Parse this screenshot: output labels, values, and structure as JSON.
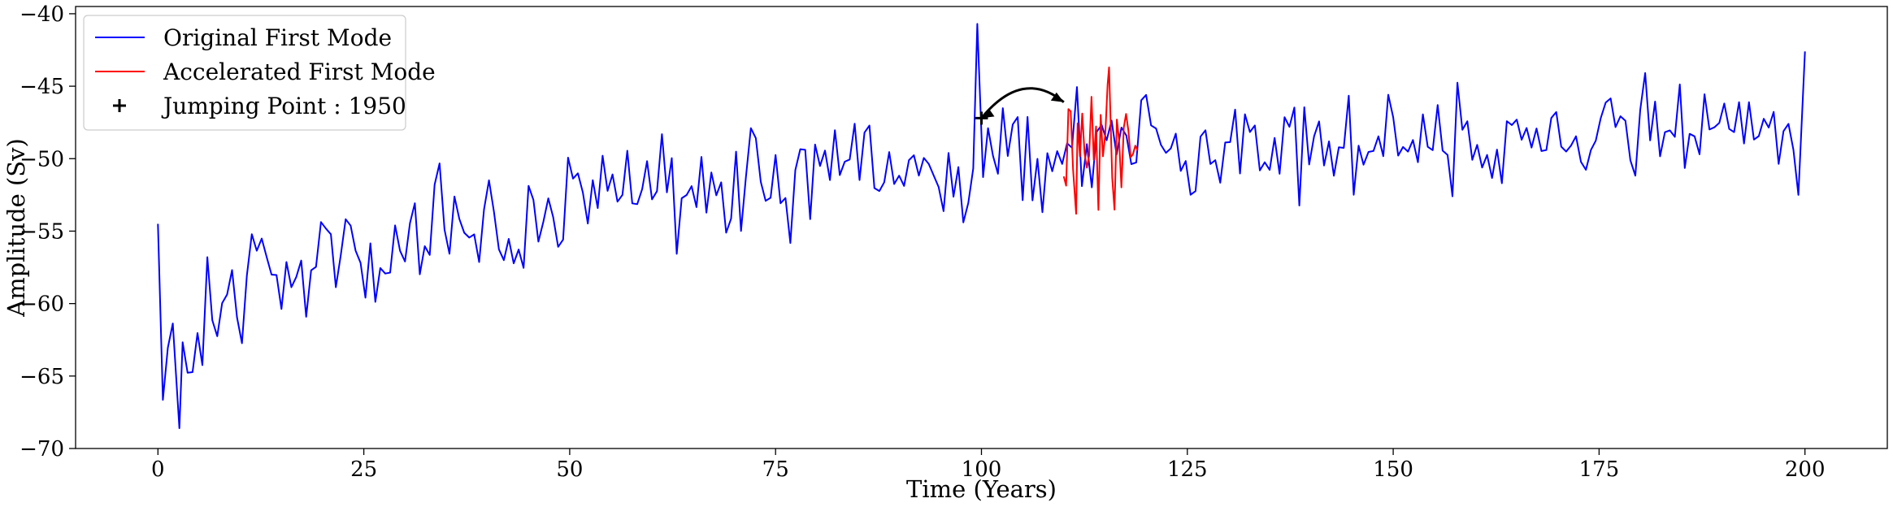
{
  "chart_data": {
    "type": "line",
    "title": "",
    "xlabel": "Time (Years)",
    "ylabel": "Amplitude (Sv)",
    "xlim": [
      -10,
      210
    ],
    "ylim": [
      -70,
      -39.5
    ],
    "x_ticks": [
      0,
      25,
      50,
      75,
      100,
      125,
      150,
      175,
      200
    ],
    "y_ticks": [
      -70,
      -65,
      -60,
      -55,
      -50,
      -45,
      -40
    ],
    "x_tick_labels": [
      "0",
      "25",
      "50",
      "75",
      "100",
      "125",
      "150",
      "175",
      "200"
    ],
    "y_tick_labels": [
      "−70",
      "−65",
      "−60",
      "−55",
      "−50",
      "−45",
      "−40"
    ],
    "grid": false,
    "legend_position": "top-left",
    "series": [
      {
        "name": "Original First Mode",
        "color": "#0000ff",
        "note_sampling": "approximate envelope reading, one point per ~0.6 year",
        "x_start": 0,
        "x_end": 200,
        "trend": [
          [
            0,
            -65.5
          ],
          [
            5,
            -61.5
          ],
          [
            10,
            -59.5
          ],
          [
            20,
            -57
          ],
          [
            30,
            -55.5
          ],
          [
            50,
            -53.5
          ],
          [
            70,
            -52
          ],
          [
            90,
            -50.5
          ],
          [
            110,
            -49.5
          ],
          [
            125,
            -49
          ],
          [
            150,
            -48.5
          ],
          [
            175,
            -48
          ],
          [
            200,
            -47.5
          ]
        ],
        "amplitude_envelope": [
          [
            0,
            4.5
          ],
          [
            20,
            4.5
          ],
          [
            50,
            4.2
          ],
          [
            100,
            4.0
          ],
          [
            150,
            3.8
          ],
          [
            200,
            3.8
          ]
        ],
        "extremes": [
          {
            "x": 0,
            "y": -54.5
          },
          {
            "x": 2.6,
            "y": -68.6
          },
          {
            "x": 99.5,
            "y": -40.7
          },
          {
            "x": 200,
            "y": -42.6
          },
          {
            "x": 199.2,
            "y": -52.5
          }
        ]
      },
      {
        "name": "Accelerated First Mode",
        "color": "#ff0000",
        "x_start": 110,
        "x_end": 119,
        "trend": [
          [
            110,
            -49.3
          ],
          [
            119,
            -49.2
          ]
        ],
        "amplitude_envelope": [
          [
            110,
            4.3
          ],
          [
            119,
            4.3
          ]
        ],
        "extremes": [
          {
            "x": 115.5,
            "y": -43.7
          },
          {
            "x": 111.5,
            "y": -53.8
          }
        ]
      }
    ],
    "markers": [
      {
        "name": "Jumping Point : 1950",
        "symbol": "+",
        "x": 100,
        "y": -47.2,
        "color": "#000000"
      }
    ],
    "annotations": [
      {
        "type": "curved-arrow",
        "from": [
          100,
          -47.2
        ],
        "to": [
          110,
          -46.1
        ],
        "color": "#000000"
      }
    ],
    "legend": [
      {
        "label": "Original First Mode",
        "kind": "line",
        "color": "#0000ff"
      },
      {
        "label": "Accelerated First Mode",
        "kind": "line",
        "color": "#ff0000"
      },
      {
        "label": "Jumping Point : 1950",
        "kind": "plus",
        "color": "#000000"
      }
    ]
  }
}
